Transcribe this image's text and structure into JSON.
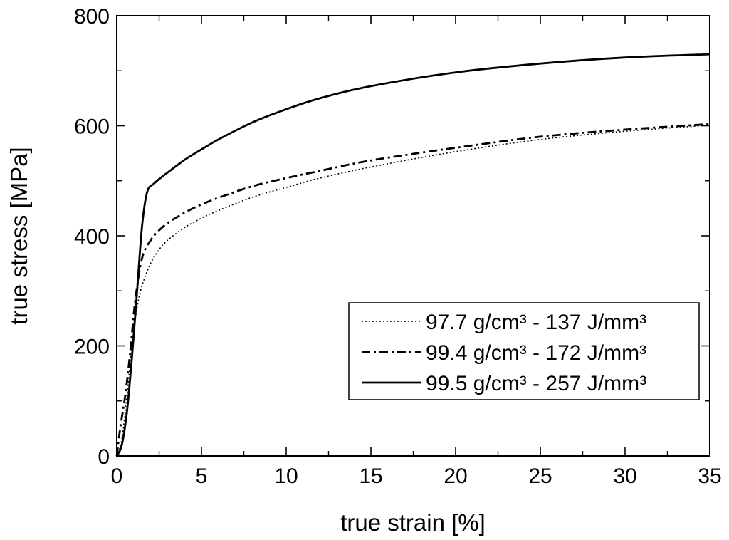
{
  "chart_data": {
    "type": "line",
    "xlabel": "true strain [%]",
    "ylabel": "true stress [MPa]",
    "xlim": [
      0,
      35
    ],
    "ylim": [
      0,
      800
    ],
    "xticks": [
      "0",
      "5",
      "10",
      "15",
      "20",
      "25",
      "30",
      "35"
    ],
    "yticks": [
      "0",
      "200",
      "400",
      "600",
      "800"
    ],
    "grid": false,
    "legend_position": "bottom-right",
    "series": [
      {
        "name": "97.7 g/cm³ - 137 J/mm³",
        "style": "dotted",
        "x": [
          0,
          0.3,
          0.6,
          0.9,
          1.2,
          1.5,
          2,
          2.5,
          3,
          4,
          5,
          6,
          8,
          10,
          12,
          15,
          20,
          25,
          30,
          35
        ],
        "y": [
          0,
          30,
          110,
          200,
          270,
          310,
          350,
          375,
          392,
          415,
          432,
          446,
          470,
          488,
          505,
          525,
          553,
          575,
          590,
          601
        ]
      },
      {
        "name": "99.4 g/cm³ - 172 J/mm³",
        "style": "dashdot",
        "x": [
          0,
          0.2,
          0.5,
          0.8,
          1.1,
          1.5,
          2,
          2.5,
          3,
          4,
          5,
          6,
          8,
          10,
          12,
          15,
          20,
          25,
          30,
          35
        ],
        "y": [
          0,
          50,
          110,
          190,
          285,
          360,
          392,
          410,
          423,
          442,
          457,
          469,
          490,
          505,
          518,
          537,
          560,
          580,
          593,
          603
        ]
      },
      {
        "name": "99.5 g/cm³ - 257 J/mm³",
        "style": "solid",
        "x": [
          0,
          0.3,
          0.6,
          0.9,
          1.2,
          1.5,
          1.8,
          2.2,
          2.7,
          3,
          4,
          5,
          6,
          8,
          10,
          12,
          15,
          20,
          25,
          30,
          35
        ],
        "y": [
          0,
          20,
          80,
          180,
          300,
          420,
          480,
          495,
          508,
          515,
          538,
          557,
          575,
          606,
          630,
          650,
          672,
          697,
          713,
          724,
          730
        ]
      }
    ]
  }
}
